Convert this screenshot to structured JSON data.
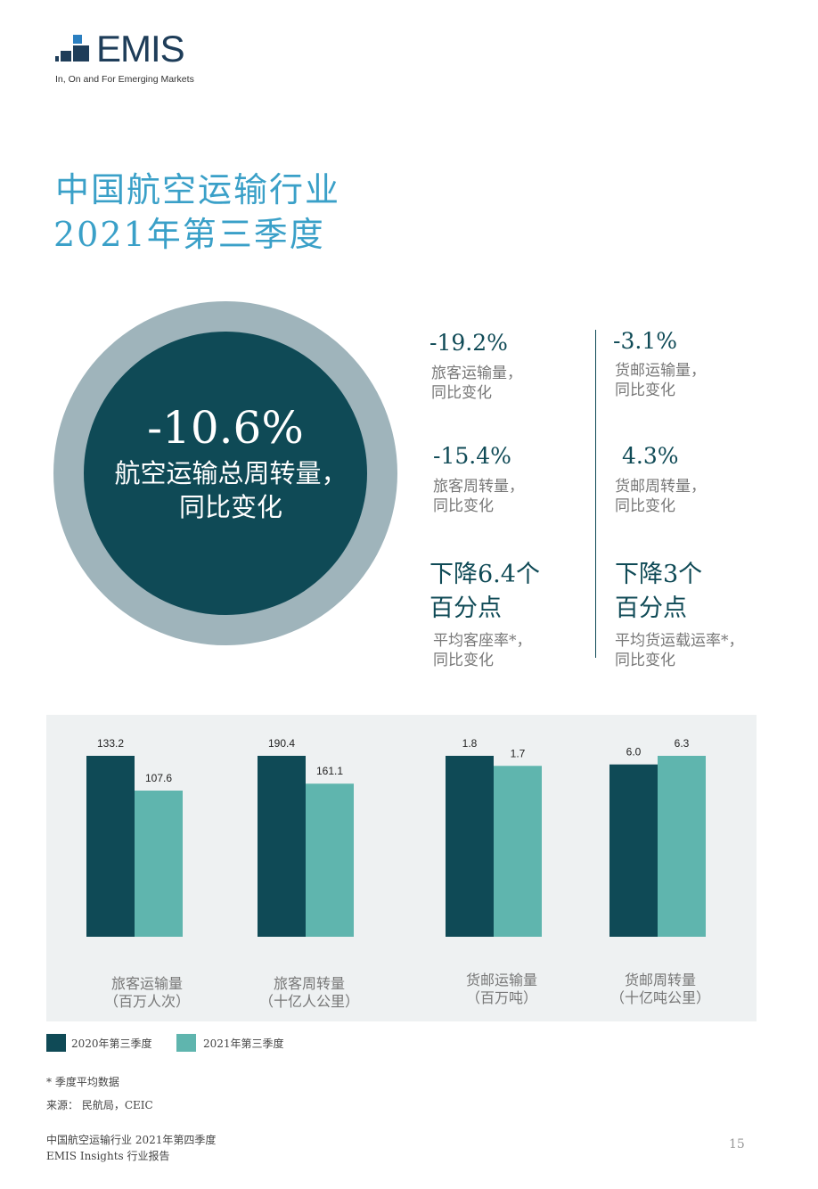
{
  "logo": {
    "brand": "EMIS",
    "tagline": "In, On and For Emerging Markets"
  },
  "title": {
    "line1": "中国航空运输行业",
    "line2": "2021年第三季度"
  },
  "highlight": {
    "value": "-10.6%",
    "label": "航空运输总周转量，\n同比变化"
  },
  "stats": [
    {
      "value": "-19.2%",
      "label": "旅客运输量，\n同比变化"
    },
    {
      "value": "-3.1%",
      "label": "货邮运输量，\n同比变化"
    },
    {
      "value": "-15.4%",
      "label": "旅客周转量，\n同比变化"
    },
    {
      "value": "4.3%",
      "label": "货邮周转量，\n同比变化"
    },
    {
      "value": "下降6.4个\n百分点",
      "label": "平均客座率*，\n同比变化"
    },
    {
      "value": "下降3个\n百分点",
      "label": "平均货运载运率*，\n同比变化"
    }
  ],
  "colors": {
    "dark": "#0f4a56",
    "teal": "#5fb5ae",
    "ring": "#9fb4bb",
    "title": "#3aa0c8"
  },
  "chart_data": {
    "type": "bar",
    "categories": [
      "旅客运输量\n（百万人次）",
      "旅客周转量\n（十亿人公里）",
      "货邮运输量\n（百万吨）",
      "货邮周转量\n（十亿吨公里）"
    ],
    "series": [
      {
        "name": "2020年第三季度",
        "values": [
          133.2,
          190.4,
          1.8,
          6.0
        ],
        "labels": [
          "133.2",
          "190.4",
          "1.8",
          "6.0"
        ]
      },
      {
        "name": "2021年第三季度",
        "values": [
          107.6,
          161.1,
          1.7,
          6.3
        ],
        "labels": [
          "107.6",
          "161.1",
          "1.7",
          "6.3"
        ]
      }
    ],
    "ylim": [
      0,
      "max per category"
    ],
    "grid": false,
    "legend_position": "bottom-left"
  },
  "notes": {
    "asterisk": "* 季度平均数据",
    "source": "来源： 民航局，CEIC"
  },
  "footer": {
    "line1": "中国航空运输行业 2021年第四季度",
    "line2": "EMIS Insights 行业报告",
    "page_number": "15"
  }
}
